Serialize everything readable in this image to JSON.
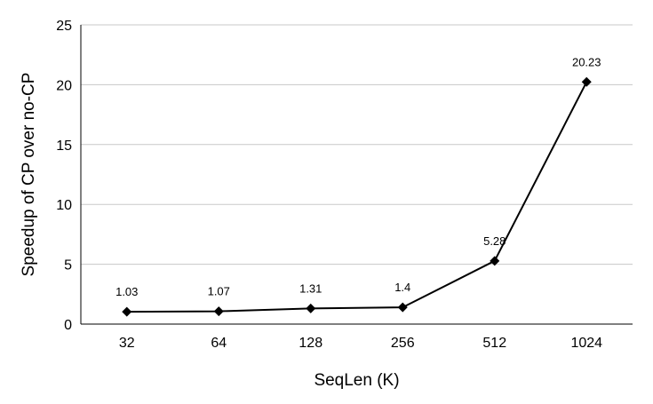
{
  "chart_data": {
    "type": "line",
    "categories": [
      "32",
      "64",
      "128",
      "256",
      "512",
      "1024"
    ],
    "values": [
      1.03,
      1.07,
      1.31,
      1.4,
      5.28,
      20.23
    ],
    "data_labels": [
      "1.03",
      "1.07",
      "1.31",
      "1.4",
      "5.28",
      "20.23"
    ],
    "title": "",
    "xlabel": "SeqLen (K)",
    "ylabel": "Speedup of CP over no-CP",
    "ylim": [
      0,
      25
    ],
    "yticks": [
      0,
      5,
      10,
      15,
      20,
      25
    ],
    "grid": "horizontal",
    "legend": "none",
    "marker": "diamond",
    "line_color": "#000000",
    "grid_color": "#c8c8c8"
  }
}
